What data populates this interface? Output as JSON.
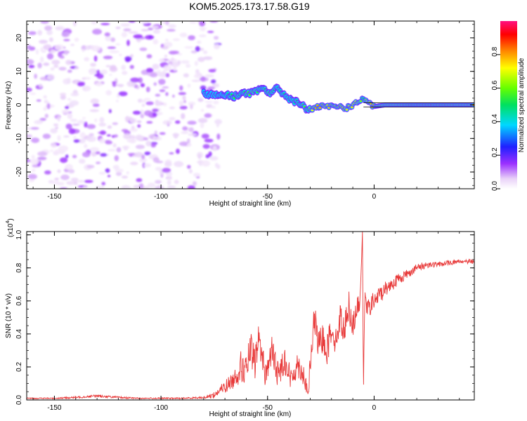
{
  "figure_title": "KOM5.2025.173.17.58.G19",
  "colors": {
    "trace": "#e83a3a",
    "axis": "#000000",
    "speckle": "#7a2be0"
  },
  "chart_data": [
    {
      "type": "heatmap",
      "xlabel": "Height of straight line (km)",
      "ylabel": "Frequency (Hz)",
      "xlim": [
        -163,
        47
      ],
      "ylim": [
        -25,
        25
      ],
      "xticks": [
        -150,
        -100,
        -50,
        0
      ],
      "yticks": [
        -20,
        -10,
        0,
        10,
        20
      ],
      "colorbar": {
        "label": "Normalized spectral amplitude",
        "range": [
          0,
          1
        ],
        "ticks": [
          "0.0",
          "0.2",
          "0.4",
          "0.6",
          "0.8"
        ],
        "tick_values": [
          0,
          0.2,
          0.4,
          0.6,
          0.8
        ],
        "colormap": "rainbow (white-violet-blue-cyan-green-yellow-red-magenta)"
      },
      "noise_region_x": [
        -163,
        -73
      ],
      "signal_track": {
        "x": [
          -80,
          -75,
          -70,
          -66,
          -62,
          -58,
          -55,
          -52,
          -49,
          -46,
          -43,
          -40,
          -37,
          -34,
          -31,
          -28,
          -25,
          -22,
          -19,
          -16,
          -13,
          -10,
          -7,
          -5,
          -3,
          0,
          5,
          10,
          20,
          30,
          40,
          47
        ],
        "freq": [
          3.5,
          3,
          3,
          2.5,
          3.5,
          3.5,
          4,
          5,
          3.5,
          5,
          3.5,
          2,
          1,
          0,
          -1.5,
          -1,
          -0.5,
          -0.5,
          -0.5,
          -0.5,
          -1,
          0,
          1,
          2,
          0.5,
          -0.5,
          0,
          0,
          0,
          0,
          0,
          0
        ],
        "amplitude": [
          0.35,
          0.4,
          0.4,
          0.55,
          0.5,
          0.6,
          0.55,
          0.5,
          0.6,
          0.45,
          0.5,
          0.45,
          0.45,
          0.6,
          0.55,
          0.8,
          0.8,
          0.75,
          0.8,
          0.8,
          0.75,
          0.75,
          0.7,
          0.5,
          0.75,
          0.8,
          0.85,
          0.8,
          0.95,
          0.9,
          0.85,
          0.85
        ]
      }
    },
    {
      "type": "line",
      "xlabel": "Height of straight line (km)",
      "ylabel": "SNR (10 * v/v)",
      "y_multiplier": "(x10",
      "y_multiplier_exp": "4",
      "xlim": [
        -163,
        47
      ],
      "ylim": [
        0,
        1.02
      ],
      "xticks": [
        -150,
        -100,
        -50,
        0
      ],
      "yticks": [
        "0.0",
        "0.2",
        "0.4",
        "0.6",
        "0.8",
        "1.0"
      ],
      "ytick_values": [
        0,
        0.2,
        0.4,
        0.6,
        0.8,
        1.0
      ],
      "series": [
        {
          "x": [
            -163,
            -150,
            -140,
            -130,
            -120,
            -110,
            -100,
            -90,
            -80,
            -75,
            -70,
            -66,
            -63,
            -60,
            -58,
            -56,
            -54,
            -51,
            -48,
            -45,
            -42,
            -39,
            -36,
            -33,
            -31,
            -30,
            -28,
            -26,
            -24,
            -22,
            -20,
            -18,
            -16,
            -14,
            -12,
            -10,
            -8,
            -6.5,
            -5.5,
            -5,
            -4.5,
            -3,
            0,
            5,
            10,
            15,
            20,
            25,
            30,
            35,
            40,
            47
          ],
          "y": [
            0.01,
            0.01,
            0.015,
            0.025,
            0.015,
            0.01,
            0.01,
            0.01,
            0.015,
            0.03,
            0.08,
            0.12,
            0.2,
            0.18,
            0.3,
            0.22,
            0.38,
            0.15,
            0.3,
            0.15,
            0.25,
            0.12,
            0.22,
            0.15,
            0.03,
            0.2,
            0.5,
            0.32,
            0.38,
            0.3,
            0.45,
            0.35,
            0.5,
            0.42,
            0.58,
            0.45,
            0.55,
            0.6,
            1.02,
            0.05,
            0.6,
            0.55,
            0.6,
            0.67,
            0.72,
            0.76,
            0.8,
            0.82,
            0.82,
            0.83,
            0.84,
            0.84
          ],
          "noise": [
            0.004,
            0.004,
            0.006,
            0.008,
            0.006,
            0.004,
            0.004,
            0.004,
            0.006,
            0.02,
            0.04,
            0.05,
            0.1,
            0.09,
            0.12,
            0.1,
            0.1,
            0.08,
            0.09,
            0.08,
            0.09,
            0.07,
            0.08,
            0.07,
            0.02,
            0.1,
            0.1,
            0.09,
            0.1,
            0.09,
            0.1,
            0.08,
            0.09,
            0.08,
            0.1,
            0.07,
            0.07,
            0.05,
            0.0,
            0.0,
            0.06,
            0.06,
            0.06,
            0.05,
            0.04,
            0.03,
            0.025,
            0.02,
            0.015,
            0.015,
            0.015,
            0.015
          ]
        }
      ]
    }
  ]
}
